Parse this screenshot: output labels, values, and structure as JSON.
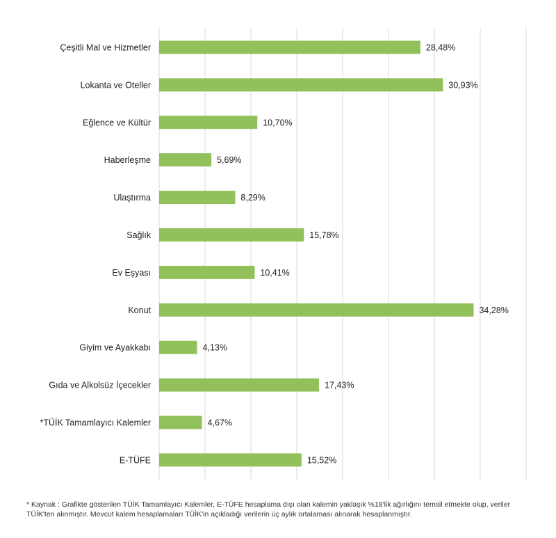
{
  "chart_data": {
    "type": "bar",
    "orientation": "horizontal",
    "categories": [
      "Çeşitli Mal ve Hizmetler",
      "Lokanta ve Oteller",
      "Eğlence ve Kültür",
      "Haberleşme",
      "Ulaştırma",
      "Sağlık",
      "Ev Eşyası",
      "Konut",
      "Giyim ve Ayakkabı",
      "Gıda ve Alkolsüz İçecekler",
      "*TÜİK Tamamlayıcı Kalemler",
      "E-TÜFE"
    ],
    "values": [
      28.48,
      30.93,
      10.7,
      5.69,
      8.29,
      15.78,
      10.41,
      34.28,
      4.13,
      17.43,
      4.67,
      15.52
    ],
    "value_labels": [
      "28,48%",
      "30,93%",
      "10,70%",
      "5,69%",
      "8,29%",
      "15,78%",
      "10,41%",
      "34,28%",
      "4,13%",
      "17,43%",
      "4,67%",
      "15,52%"
    ],
    "xlim": [
      0,
      40
    ],
    "grid": true,
    "bar_color": "#92c05a",
    "title": "",
    "xlabel": "",
    "ylabel": ""
  },
  "footnote": "* Kaynak : Grafikte gösterilen TÜİK Tamamlayıcı Kalemler, E-TÜFE hesaplama dışı olan kalemin yaklaşık %18'lik ağırlığını temsil etmekte olup, veriler TÜİK'ten alınmıştır. Mevcut kalem hesaplamaları TÜİK'in açıkladığı verilerin üç aylık ortalaması alınarak hesaplanmıştır."
}
